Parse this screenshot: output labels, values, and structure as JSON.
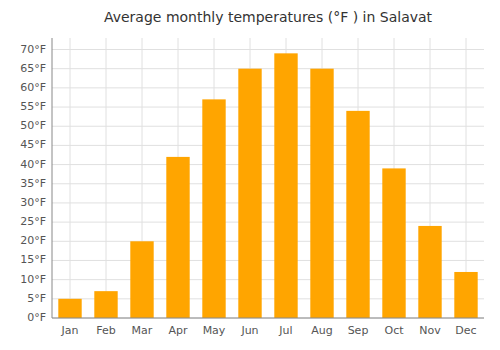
{
  "chart_data": {
    "type": "bar",
    "title": "Average monthly temperatures (°F ) in Salavat",
    "categories": [
      "Jan",
      "Feb",
      "Mar",
      "Apr",
      "May",
      "Jun",
      "Jul",
      "Aug",
      "Sep",
      "Oct",
      "Nov",
      "Dec"
    ],
    "values": [
      5,
      7,
      20,
      42,
      57,
      65,
      69,
      65,
      54,
      39,
      24,
      12
    ],
    "color": "#FFA500",
    "ylim": [
      0,
      73
    ],
    "yticks": [
      {
        "value": 0,
        "label": "0°F"
      },
      {
        "value": 5,
        "label": "5°F"
      },
      {
        "value": 10,
        "label": "10°F"
      },
      {
        "value": 15,
        "label": "15°F"
      },
      {
        "value": 20,
        "label": "20°F"
      },
      {
        "value": 25,
        "label": "25°F"
      },
      {
        "value": 30,
        "label": "30°F"
      },
      {
        "value": 35,
        "label": "35°F"
      },
      {
        "value": 40,
        "label": "40°F"
      },
      {
        "value": 45,
        "label": "45°F"
      },
      {
        "value": 50,
        "label": "50°F"
      },
      {
        "value": 55,
        "label": "55°F"
      },
      {
        "value": 60,
        "label": "60°F"
      },
      {
        "value": 65,
        "label": "65°F"
      },
      {
        "value": 70,
        "label": "70°F"
      }
    ],
    "grid": true
  }
}
